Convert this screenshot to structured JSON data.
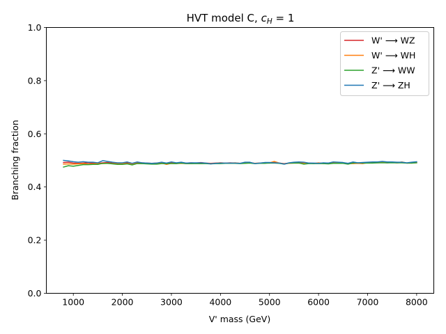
{
  "chart_data": {
    "type": "line",
    "title": "HVT model C, c_H = 1",
    "title_main": "HVT model C, ",
    "title_symbol": "c",
    "title_subscript": "H",
    "title_suffix": " = 1",
    "xlabel": "V' mass (GeV)",
    "ylabel": "Branching fraction",
    "xlim": [
      450,
      8350
    ],
    "ylim": [
      0.0,
      1.0
    ],
    "xticks": [
      1000,
      2000,
      3000,
      4000,
      5000,
      6000,
      7000,
      8000
    ],
    "xtick_labels": [
      "1000",
      "2000",
      "3000",
      "4000",
      "5000",
      "6000",
      "7000",
      "8000"
    ],
    "yticks": [
      0.0,
      0.2,
      0.4,
      0.6,
      0.8,
      1.0
    ],
    "ytick_labels": [
      "0.0",
      "0.2",
      "0.4",
      "0.6",
      "0.8",
      "1.0"
    ],
    "grid": false,
    "legend_position": "top-right",
    "x": [
      800,
      900,
      1000,
      1100,
      1200,
      1300,
      1400,
      1500,
      1600,
      1700,
      1800,
      1900,
      2000,
      2100,
      2200,
      2300,
      2400,
      2500,
      2600,
      2700,
      2800,
      2900,
      3000,
      3100,
      3200,
      3300,
      3400,
      3500,
      3600,
      3700,
      3800,
      3900,
      4000,
      4100,
      4200,
      4300,
      4400,
      4500,
      4600,
      4700,
      4800,
      4900,
      5000,
      5100,
      5200,
      5300,
      5400,
      5500,
      5600,
      5700,
      5800,
      5900,
      6000,
      6100,
      6200,
      6300,
      6400,
      6500,
      6600,
      6700,
      6800,
      6900,
      7000,
      7100,
      7200,
      7300,
      7400,
      7500,
      7600,
      7700,
      7800,
      7900,
      8000
    ],
    "series": [
      {
        "name": "W' ⟶ WZ",
        "color": "#d62728",
        "values": [
          0.492,
          0.493,
          0.49,
          0.489,
          0.49,
          0.491,
          0.49,
          0.489,
          0.491,
          0.492,
          0.49,
          0.489,
          0.49,
          0.491,
          0.488,
          0.49,
          0.491,
          0.49,
          0.489,
          0.49,
          0.491,
          0.49,
          0.492,
          0.49,
          0.491,
          0.49,
          0.491,
          0.49,
          0.492,
          0.49,
          0.489,
          0.49,
          0.491,
          0.49,
          0.491,
          0.49,
          0.489,
          0.491,
          0.492,
          0.489,
          0.49,
          0.491,
          0.49,
          0.492,
          0.49,
          0.488,
          0.49,
          0.491,
          0.492,
          0.49,
          0.49,
          0.489,
          0.49,
          0.49,
          0.49,
          0.491,
          0.49,
          0.49,
          0.489,
          0.49,
          0.49,
          0.49,
          0.491,
          0.492,
          0.493,
          0.492,
          0.491,
          0.492,
          0.491,
          0.492,
          0.49,
          0.491,
          0.492
        ]
      },
      {
        "name": "W' ⟶ WH",
        "color": "#ff7f0e",
        "values": [
          0.486,
          0.487,
          0.486,
          0.487,
          0.488,
          0.486,
          0.487,
          0.488,
          0.488,
          0.489,
          0.488,
          0.487,
          0.488,
          0.488,
          0.486,
          0.489,
          0.488,
          0.488,
          0.488,
          0.489,
          0.49,
          0.485,
          0.489,
          0.488,
          0.489,
          0.488,
          0.488,
          0.489,
          0.488,
          0.489,
          0.488,
          0.489,
          0.491,
          0.49,
          0.49,
          0.491,
          0.489,
          0.49,
          0.491,
          0.489,
          0.49,
          0.491,
          0.491,
          0.496,
          0.49,
          0.487,
          0.489,
          0.49,
          0.49,
          0.489,
          0.49,
          0.488,
          0.491,
          0.488,
          0.489,
          0.49,
          0.491,
          0.49,
          0.488,
          0.488,
          0.489,
          0.488,
          0.491,
          0.491,
          0.491,
          0.492,
          0.493,
          0.493,
          0.491,
          0.494,
          0.49,
          0.49,
          0.491
        ]
      },
      {
        "name": "Z' ⟶ WW",
        "color": "#2ca02c",
        "values": [
          0.475,
          0.48,
          0.478,
          0.481,
          0.484,
          0.484,
          0.485,
          0.485,
          0.489,
          0.489,
          0.487,
          0.485,
          0.485,
          0.487,
          0.483,
          0.488,
          0.488,
          0.487,
          0.486,
          0.486,
          0.488,
          0.488,
          0.488,
          0.488,
          0.49,
          0.488,
          0.488,
          0.488,
          0.488,
          0.488,
          0.487,
          0.488,
          0.488,
          0.489,
          0.489,
          0.489,
          0.488,
          0.489,
          0.49,
          0.488,
          0.489,
          0.489,
          0.49,
          0.49,
          0.489,
          0.486,
          0.49,
          0.49,
          0.49,
          0.486,
          0.488,
          0.488,
          0.488,
          0.488,
          0.487,
          0.489,
          0.489,
          0.489,
          0.486,
          0.49,
          0.491,
          0.49,
          0.49,
          0.49,
          0.491,
          0.491,
          0.491,
          0.491,
          0.491,
          0.491,
          0.49,
          0.49,
          0.491
        ]
      },
      {
        "name": "Z' ⟶ ZH",
        "color": "#1f77b4",
        "values": [
          0.5,
          0.498,
          0.495,
          0.493,
          0.495,
          0.493,
          0.493,
          0.491,
          0.499,
          0.496,
          0.493,
          0.491,
          0.491,
          0.494,
          0.489,
          0.494,
          0.491,
          0.49,
          0.489,
          0.49,
          0.493,
          0.49,
          0.494,
          0.491,
          0.493,
          0.49,
          0.491,
          0.491,
          0.491,
          0.49,
          0.487,
          0.489,
          0.49,
          0.49,
          0.49,
          0.49,
          0.489,
          0.493,
          0.493,
          0.488,
          0.49,
          0.492,
          0.492,
          0.491,
          0.49,
          0.486,
          0.491,
          0.493,
          0.494,
          0.493,
          0.49,
          0.49,
          0.489,
          0.491,
          0.49,
          0.494,
          0.493,
          0.492,
          0.489,
          0.494,
          0.491,
          0.492,
          0.493,
          0.494,
          0.494,
          0.496,
          0.494,
          0.494,
          0.493,
          0.493,
          0.491,
          0.493,
          0.495
        ]
      }
    ]
  }
}
